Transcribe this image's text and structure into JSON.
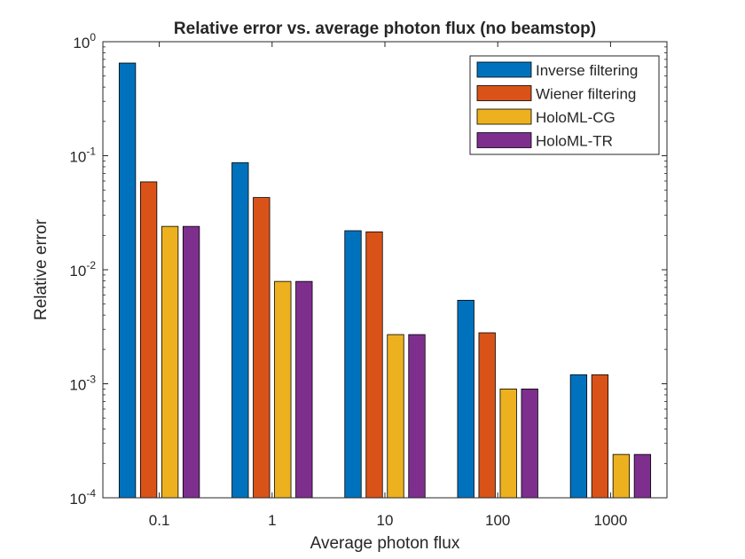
{
  "chart_data": {
    "type": "bar",
    "title": "Relative error vs. average photon flux (no beamstop)",
    "xlabel": "Average photon flux",
    "ylabel": "Relative error",
    "yscale": "log",
    "ylim": [
      0.0001,
      1
    ],
    "categories": [
      "0.1",
      "1",
      "10",
      "100",
      "1000"
    ],
    "y_ticks": [
      {
        "base": "10",
        "exp": "0"
      },
      {
        "base": "10",
        "exp": "-1"
      },
      {
        "base": "10",
        "exp": "-2"
      },
      {
        "base": "10",
        "exp": "-3"
      },
      {
        "base": "10",
        "exp": "-4"
      }
    ],
    "legend_position": "top-right",
    "grid": false,
    "series": [
      {
        "name": "Inverse filtering",
        "color": "#0072BD",
        "values": [
          0.65,
          0.087,
          0.022,
          0.0054,
          0.0012
        ]
      },
      {
        "name": "Wiener filtering",
        "color": "#D95319",
        "values": [
          0.059,
          0.043,
          0.0215,
          0.0028,
          0.0012
        ]
      },
      {
        "name": "HoloML-CG",
        "color": "#EDB120",
        "values": [
          0.024,
          0.0079,
          0.0027,
          0.0009,
          0.00024
        ]
      },
      {
        "name": "HoloML-TR",
        "color": "#7E2F8E",
        "values": [
          0.024,
          0.0079,
          0.0027,
          0.0009,
          0.00024
        ]
      }
    ]
  }
}
